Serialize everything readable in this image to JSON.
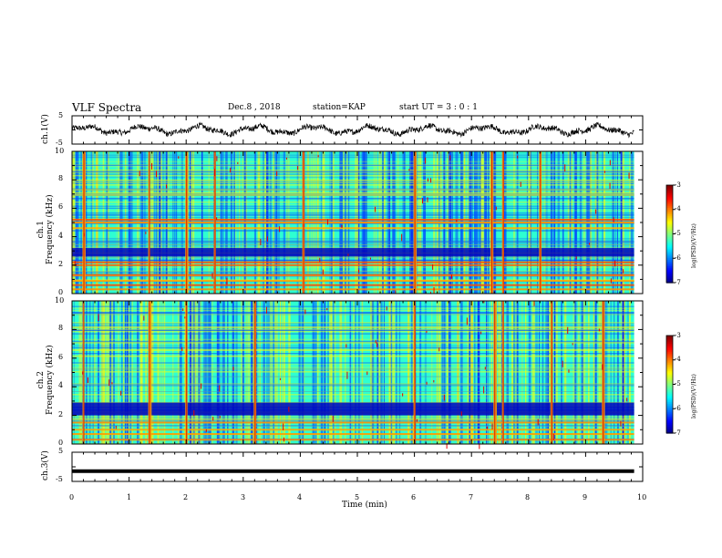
{
  "header": {
    "title": "VLF Spectra",
    "date": "Dec.8 , 2018",
    "station": "station=KAP",
    "start_ut": "start UT = 3 : 0 : 1"
  },
  "chart_data": [
    {
      "type": "line",
      "panel": "ch1-waveform",
      "ylabel": "ch.1(V)",
      "ylim": [
        -5,
        5
      ],
      "ytick_labels": [
        "5",
        "-5"
      ],
      "xlim": [
        0,
        10
      ],
      "line_color": "#000000",
      "noise_amplitude_V": 1.0,
      "baseline_V": 0.0
    },
    {
      "type": "heatmap",
      "panel": "ch1-spectrogram",
      "ylabel": [
        "ch.1",
        "Frequency (kHz)"
      ],
      "ylim": [
        0,
        10
      ],
      "ytick_labels": [
        "0",
        "2",
        "4",
        "6",
        "8",
        "10"
      ],
      "xlim": [
        0,
        10
      ],
      "colorbar": {
        "label": "log(PSD)(V²/Hz)",
        "range": [
          -7,
          -3
        ],
        "tick_labels": [
          "-3",
          "-4",
          "-5",
          "-6",
          "-7"
        ]
      },
      "dark_bands_kHz": [
        [
          2.6,
          3.2
        ]
      ],
      "bright_lines_kHz": [
        0.3,
        0.6,
        0.9,
        1.3,
        2.0,
        2.2,
        4.6,
        5.0,
        5.2
      ],
      "burst_times_min": [
        0.2,
        1.35,
        2.0,
        2.5,
        4.05,
        6.0,
        7.35,
        7.55,
        8.2
      ]
    },
    {
      "type": "heatmap",
      "panel": "ch2-spectrogram",
      "ylabel": [
        "ch.2",
        "Frequency (kHz)"
      ],
      "ylim": [
        0,
        10
      ],
      "ytick_labels": [
        "0",
        "2",
        "4",
        "6",
        "8",
        "10"
      ],
      "xlim": [
        0,
        10
      ],
      "colorbar": {
        "label": "log(PSD)(V²/Hz)",
        "range": [
          -7,
          -3
        ],
        "tick_labels": [
          "-3",
          "-4",
          "-5",
          "-6",
          "-7"
        ]
      },
      "dark_bands_kHz": [
        [
          2.0,
          2.9
        ]
      ],
      "bright_lines_kHz": [
        0.3,
        0.7,
        1.0,
        1.5
      ],
      "burst_times_min": [
        0.2,
        1.35,
        2.0,
        3.2,
        6.0,
        7.4,
        7.55,
        8.4,
        9.3
      ]
    },
    {
      "type": "line",
      "panel": "ch3-waveform",
      "ylabel": "ch.3(V)",
      "ylim": [
        -5,
        5
      ],
      "ytick_labels": [
        "5",
        "-5"
      ],
      "xlim": [
        0,
        10
      ],
      "line_color": "#000000",
      "constant_value_V": -1.5
    }
  ],
  "x_axis": {
    "label": "Time (min)",
    "range": [
      0,
      10
    ],
    "tick_labels": [
      "0",
      "1",
      "2",
      "3",
      "4",
      "5",
      "6",
      "7",
      "8",
      "9",
      "10"
    ]
  }
}
